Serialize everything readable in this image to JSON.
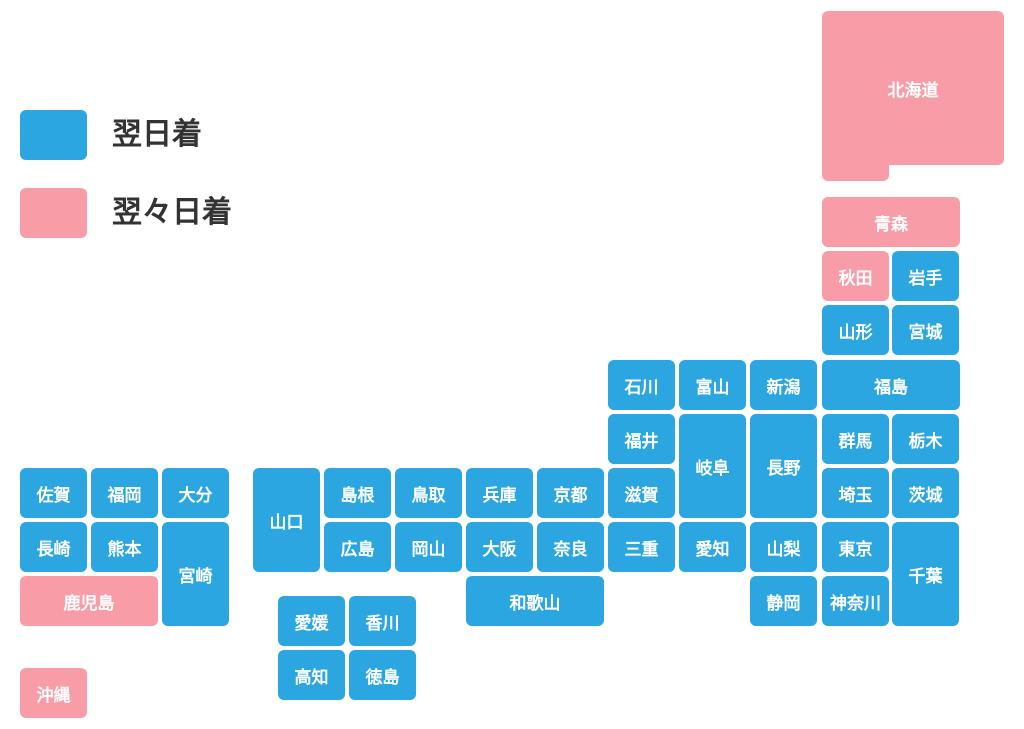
{
  "colors": {
    "next_day": "#2ba6e0",
    "day_after_next": "#f89da8"
  },
  "legend": [
    {
      "label": "翌日着",
      "color": "#2ba6e0"
    },
    {
      "label": "翌々日着",
      "color": "#f89da8"
    }
  ],
  "prefectures": {
    "hokkaido": {
      "name": "北海道",
      "status": "翌々日着"
    },
    "aomori": {
      "name": "青森",
      "status": "翌々日着"
    },
    "akita": {
      "name": "秋田",
      "status": "翌々日着"
    },
    "iwate": {
      "name": "岩手",
      "status": "翌日着"
    },
    "yamagata": {
      "name": "山形",
      "status": "翌日着"
    },
    "miyagi": {
      "name": "宮城",
      "status": "翌日着"
    },
    "fukushima": {
      "name": "福島",
      "status": "翌日着"
    },
    "ishikawa": {
      "name": "石川",
      "status": "翌日着"
    },
    "toyama": {
      "name": "富山",
      "status": "翌日着"
    },
    "niigata": {
      "name": "新潟",
      "status": "翌日着"
    },
    "fukui": {
      "name": "福井",
      "status": "翌日着"
    },
    "gifu": {
      "name": "岐阜",
      "status": "翌日着"
    },
    "nagano": {
      "name": "長野",
      "status": "翌日着"
    },
    "gunma": {
      "name": "群馬",
      "status": "翌日着"
    },
    "tochigi": {
      "name": "栃木",
      "status": "翌日着"
    },
    "shiga": {
      "name": "滋賀",
      "status": "翌日着"
    },
    "saitama": {
      "name": "埼玉",
      "status": "翌日着"
    },
    "ibaraki": {
      "name": "茨城",
      "status": "翌日着"
    },
    "mie": {
      "name": "三重",
      "status": "翌日着"
    },
    "aichi": {
      "name": "愛知",
      "status": "翌日着"
    },
    "yamanashi": {
      "name": "山梨",
      "status": "翌日着"
    },
    "tokyo": {
      "name": "東京",
      "status": "翌日着"
    },
    "chiba": {
      "name": "千葉",
      "status": "翌日着"
    },
    "shizuoka": {
      "name": "静岡",
      "status": "翌日着"
    },
    "kanagawa": {
      "name": "神奈川",
      "status": "翌日着"
    },
    "yamaguchi": {
      "name": "山口",
      "status": "翌日着"
    },
    "shimane": {
      "name": "島根",
      "status": "翌日着"
    },
    "tottori": {
      "name": "鳥取",
      "status": "翌日着"
    },
    "hyogo": {
      "name": "兵庫",
      "status": "翌日着"
    },
    "kyoto": {
      "name": "京都",
      "status": "翌日着"
    },
    "hiroshima": {
      "name": "広島",
      "status": "翌日着"
    },
    "okayama": {
      "name": "岡山",
      "status": "翌日着"
    },
    "osaka": {
      "name": "大阪",
      "status": "翌日着"
    },
    "nara": {
      "name": "奈良",
      "status": "翌日着"
    },
    "wakayama": {
      "name": "和歌山",
      "status": "翌日着"
    },
    "ehime": {
      "name": "愛媛",
      "status": "翌日着"
    },
    "kagawa": {
      "name": "香川",
      "status": "翌日着"
    },
    "kochi": {
      "name": "高知",
      "status": "翌日着"
    },
    "tokushima": {
      "name": "徳島",
      "status": "翌日着"
    },
    "saga": {
      "name": "佐賀",
      "status": "翌日着"
    },
    "fukuoka": {
      "name": "福岡",
      "status": "翌日着"
    },
    "oita": {
      "name": "大分",
      "status": "翌日着"
    },
    "nagasaki": {
      "name": "長崎",
      "status": "翌日着"
    },
    "kumamoto": {
      "name": "熊本",
      "status": "翌日着"
    },
    "miyazaki": {
      "name": "宮崎",
      "status": "翌日着"
    },
    "kagoshima": {
      "name": "鹿児島",
      "status": "翌々日着"
    },
    "okinawa": {
      "name": "沖縄",
      "status": "翌々日着"
    }
  }
}
